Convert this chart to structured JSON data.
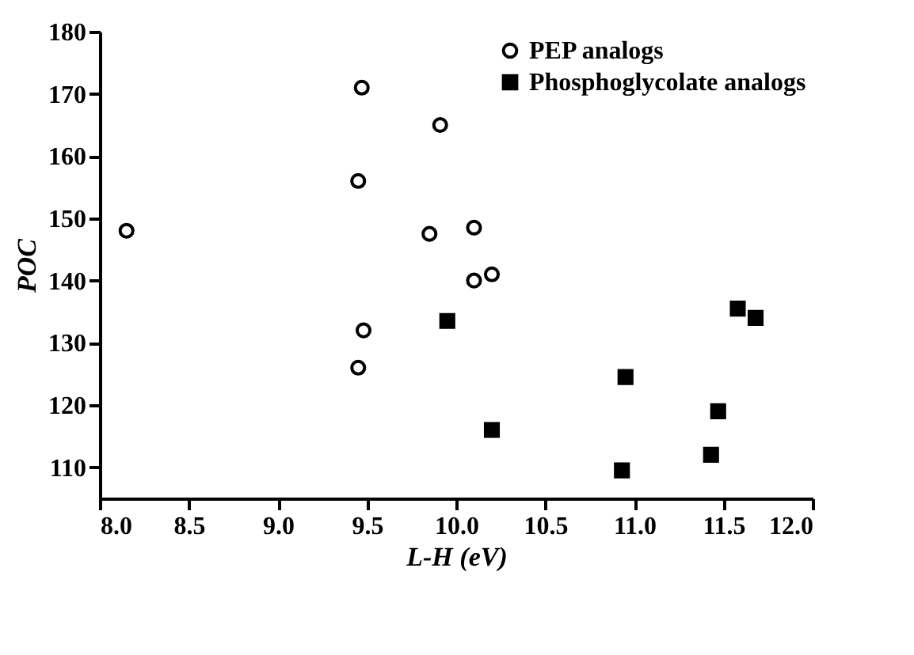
{
  "chart_data": {
    "type": "scatter",
    "xlabel": "L-H (eV)",
    "ylabel": "POC",
    "xlim": [
      8,
      12
    ],
    "ylim": [
      105,
      180
    ],
    "xticks": [
      {
        "value": 8,
        "label": "8.0"
      },
      {
        "value": 8.5,
        "label": "8.5"
      },
      {
        "value": 9,
        "label": "9.0"
      },
      {
        "value": 9.5,
        "label": "9.5"
      },
      {
        "value": 10,
        "label": "10.0"
      },
      {
        "value": 10.5,
        "label": "10.5"
      },
      {
        "value": 11,
        "label": "11.0"
      },
      {
        "value": 11.5,
        "label": "11.5"
      },
      {
        "value": 12,
        "label": "12.0"
      }
    ],
    "yticks": [
      110,
      120,
      130,
      140,
      150,
      160,
      170,
      180
    ],
    "grid": false,
    "legend": "top right",
    "series": [
      {
        "name": "PEP analogs",
        "color": "#000000",
        "marker": "circle",
        "x": [
          8.15,
          9.45,
          9.47,
          9.91,
          9.85,
          10.1,
          10.1,
          10.2,
          9.48,
          9.45
        ],
        "values": [
          148,
          156,
          171,
          165,
          147.5,
          148.5,
          140,
          141,
          132,
          126
        ]
      },
      {
        "name": "Phosphoglycolate analogs",
        "color": "#000000",
        "marker": "square",
        "x": [
          9.95,
          10.2,
          10.95,
          10.93,
          11.47,
          11.43,
          11.58,
          11.68
        ],
        "values": [
          133.5,
          116,
          124.5,
          109.5,
          119,
          112,
          135.5,
          134
        ]
      }
    ]
  }
}
